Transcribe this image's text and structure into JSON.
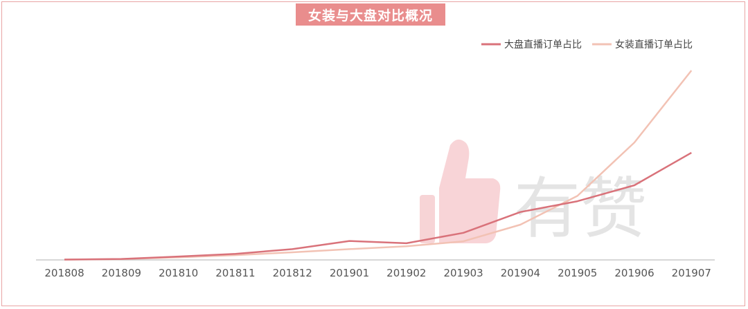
{
  "chart_data": {
    "type": "line",
    "title": "女装与大盘对比概况",
    "categories": [
      "201808",
      "201809",
      "201810",
      "201811",
      "201812",
      "201901",
      "201902",
      "201903",
      "201904",
      "201905",
      "201906",
      "201907"
    ],
    "series": [
      {
        "name": "大盘直播订单占比",
        "color": "#d9727a",
        "values": [
          0.2,
          0.5,
          1.8,
          3.2,
          5.7,
          10.0,
          8.8,
          14.3,
          25.3,
          31.0,
          39.4,
          56.6
        ]
      },
      {
        "name": "女装直播订单占比",
        "color": "#f2c2b4",
        "values": [
          0.2,
          0.4,
          1.4,
          2.5,
          4.0,
          5.7,
          7.2,
          9.8,
          18.6,
          33.8,
          62.0,
          100.0
        ]
      }
    ],
    "ylim": [
      0,
      100
    ],
    "grid": false,
    "legend": "top-right"
  },
  "watermark": {
    "text": "有赞",
    "icon": "thumbs-up-icon",
    "color": "#f5c6c9"
  }
}
